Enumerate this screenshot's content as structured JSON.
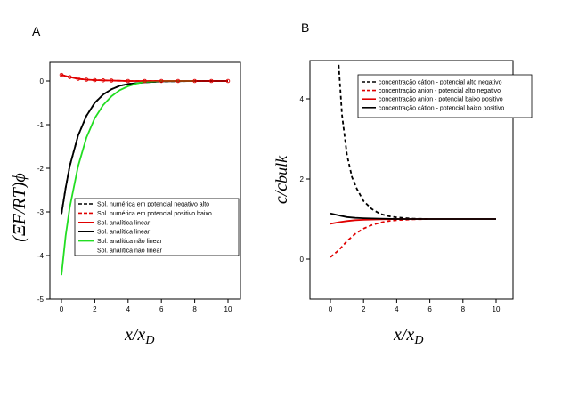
{
  "chart_data": [
    {
      "panel": "A",
      "type": "line",
      "xlabel": "x/xD",
      "ylabel": "(ΞF/RT)ϕ",
      "xlim": [
        -1,
        11
      ],
      "ylim": [
        -5,
        0.5
      ],
      "xticks": [
        "0",
        "2",
        "4",
        "6",
        "8",
        "10"
      ],
      "yticks": [
        "0",
        "-1",
        "-2",
        "-3",
        "-4",
        "-5"
      ],
      "legend_position": "lower-right",
      "series": [
        {
          "name": "Sol. numérica em potencial negativo alto",
          "color": "#000000",
          "style": "dash",
          "x": [
            0,
            0.25,
            0.5,
            1,
            1.5,
            2,
            2.5,
            3,
            3.5,
            4,
            5,
            6,
            8,
            10
          ],
          "y": [
            -3.05,
            -2.45,
            -1.95,
            -1.25,
            -0.8,
            -0.5,
            -0.31,
            -0.19,
            -0.11,
            -0.07,
            -0.03,
            -0.01,
            0,
            0
          ]
        },
        {
          "name": "Sol. numérica em potencial positivo baixo",
          "color": "#e00000",
          "style": "dash",
          "x": [
            0,
            0.5,
            1,
            1.5,
            2,
            3,
            4,
            6,
            8,
            10
          ],
          "y": [
            0.14,
            0.09,
            0.05,
            0.03,
            0.02,
            0.01,
            0,
            0,
            0,
            0
          ]
        },
        {
          "name": "Sol. analítica linear",
          "color": "#e00000",
          "style": "solid",
          "x": [
            0,
            0.5,
            1,
            1.5,
            2,
            3,
            4,
            6,
            8,
            10
          ],
          "y": [
            0.14,
            0.09,
            0.05,
            0.03,
            0.02,
            0.01,
            0,
            0,
            0,
            0
          ]
        },
        {
          "name": "Sol. analítica linear",
          "color": "#000000",
          "style": "solid",
          "x": [
            0,
            0.25,
            0.5,
            1,
            1.5,
            2,
            2.5,
            3,
            3.5,
            4,
            5,
            6,
            8,
            10
          ],
          "y": [
            -3.05,
            -2.45,
            -1.95,
            -1.25,
            -0.8,
            -0.5,
            -0.31,
            -0.19,
            -0.11,
            -0.07,
            -0.03,
            -0.01,
            0,
            0
          ]
        },
        {
          "name": "Sol. analítica não linear",
          "color": "#22dd22",
          "style": "solid",
          "x": [
            0,
            0.25,
            0.5,
            1,
            1.5,
            2,
            2.5,
            3,
            3.5,
            4,
            4.5,
            5,
            6,
            8
          ],
          "y": [
            -4.45,
            -3.55,
            -2.9,
            -1.95,
            -1.3,
            -0.85,
            -0.55,
            -0.35,
            -0.21,
            -0.12,
            -0.06,
            -0.02,
            0,
            0
          ]
        },
        {
          "name": "Sol. analítica não linear",
          "color": "#e00000",
          "style": "circles",
          "x": [
            0,
            0.5,
            1,
            1.5,
            2,
            2.5,
            3,
            4,
            5,
            6,
            7,
            8,
            9,
            10
          ],
          "y": [
            0.14,
            0.09,
            0.05,
            0.03,
            0.02,
            0.015,
            0.01,
            0,
            0,
            0,
            0,
            0,
            0,
            0
          ]
        }
      ]
    },
    {
      "panel": "B",
      "type": "line",
      "xlabel": "x/xD",
      "ylabel": "c/cbulk",
      "xlim": [
        -1,
        11
      ],
      "ylim": [
        -1,
        5
      ],
      "xticks": [
        "0",
        "2",
        "4",
        "6",
        "8",
        "10"
      ],
      "yticks": [
        "0",
        "2",
        "4"
      ],
      "legend_position": "top-right",
      "series": [
        {
          "name": "concentração cátion - potencial alto negativo",
          "color": "#000000",
          "style": "dash",
          "x": [
            0.5,
            0.7,
            1,
            1.3,
            1.6,
            2,
            2.5,
            3,
            3.5,
            4,
            5,
            6
          ],
          "y": [
            4.85,
            3.6,
            2.6,
            2.05,
            1.75,
            1.45,
            1.25,
            1.13,
            1.07,
            1.04,
            1.01,
            1.0
          ]
        },
        {
          "name": "concentração anion - potencial alto negativo",
          "color": "#e00000",
          "style": "dash",
          "x": [
            0,
            0.5,
            1,
            1.5,
            2,
            2.5,
            3,
            3.5,
            4,
            5,
            6
          ],
          "y": [
            0.05,
            0.22,
            0.45,
            0.63,
            0.76,
            0.85,
            0.91,
            0.95,
            0.97,
            0.99,
            1.0
          ]
        },
        {
          "name": "concentração anion - potencial baixo positivo",
          "color": "#e00000",
          "style": "solid",
          "x": [
            0,
            0.5,
            1,
            1.5,
            2,
            3,
            4,
            6,
            8,
            10
          ],
          "y": [
            0.88,
            0.92,
            0.95,
            0.97,
            0.98,
            0.99,
            1.0,
            1.0,
            1.0,
            1.0
          ]
        },
        {
          "name": "concentração cátion - potencial baixo positivo",
          "color": "#000000",
          "style": "solid",
          "x": [
            0,
            0.5,
            1,
            1.5,
            2,
            3,
            4,
            6,
            8,
            10
          ],
          "y": [
            1.14,
            1.09,
            1.05,
            1.03,
            1.02,
            1.01,
            1.0,
            1.0,
            1.0,
            1.0
          ]
        }
      ]
    }
  ]
}
